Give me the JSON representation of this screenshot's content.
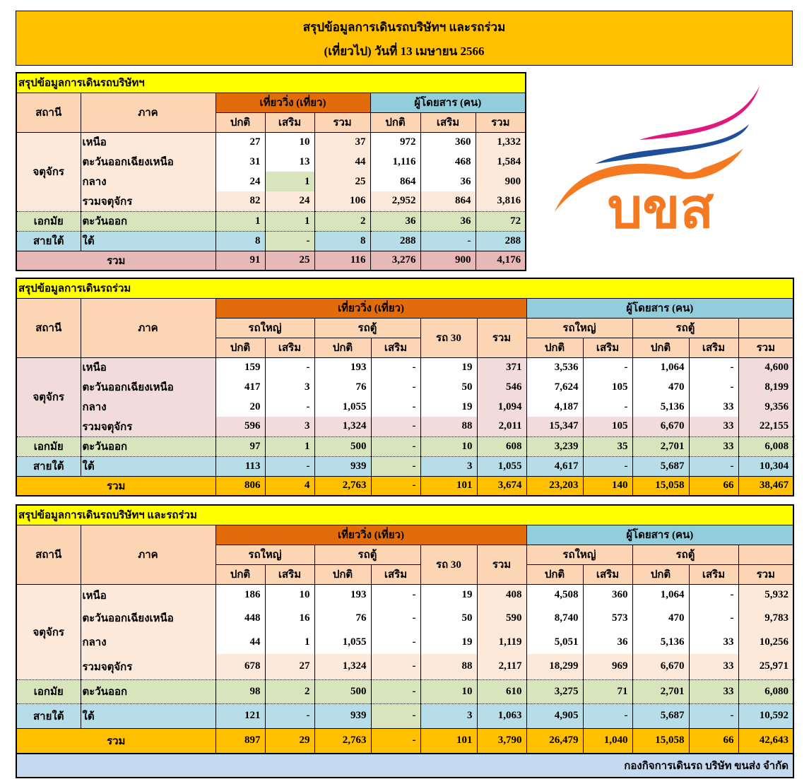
{
  "title": {
    "line1": "สรุปข้อมูลการเดินรถบริษัทฯ และรถร่วม",
    "line2": "(เที่ยวไป) วันที่ 13 เมษายน  2566"
  },
  "logo": {
    "text": "บขส",
    "colors": {
      "pink": "#e0197d",
      "blue": "#1f4e9c",
      "orange": "#f47920"
    }
  },
  "headers": {
    "station": "สถานี",
    "region": "ภาค",
    "trips": "เที่ยววิ่ง (เที่ยว)",
    "passengers": "ผู้โดยสาร (คน)",
    "normal": "ปกติ",
    "extra": "เสริม",
    "total": "รวม",
    "big_bus": "รถใหญ่",
    "van": "รถตู้",
    "bus30": "รถ 30"
  },
  "tables": [
    {
      "title": "สรุปข้อมูลการเดินรถบริษัทฯ",
      "rows": [
        {
          "station": "จตุจักร",
          "region": "เหนือ",
          "values": [
            "27",
            "10",
            "37",
            "972",
            "360",
            "1,332"
          ]
        },
        {
          "station": "จตุจักร",
          "region": "ตะวันออกเฉียงเหนือ",
          "values": [
            "31",
            "13",
            "44",
            "1,116",
            "468",
            "1,584"
          ]
        },
        {
          "station": "จตุจักร",
          "region": "กลาง",
          "values": [
            "24",
            "1",
            "25",
            "864",
            "36",
            "900"
          ]
        },
        {
          "station": "จตุจักร",
          "region": "รวมจตุจักร",
          "values": [
            "82",
            "24",
            "106",
            "2,952",
            "864",
            "3,816"
          ]
        },
        {
          "station": "เอกมัย",
          "region": "ตะวันออก",
          "values": [
            "1",
            "1",
            "2",
            "36",
            "36",
            "72"
          ]
        },
        {
          "station": "สายใต้",
          "region": "ใต้",
          "values": [
            "8",
            "-",
            "8",
            "288",
            "-",
            "288"
          ]
        }
      ],
      "total": {
        "label": "รวม",
        "values": [
          "91",
          "25",
          "116",
          "3,276",
          "900",
          "4,176"
        ]
      }
    },
    {
      "title": "สรุปข้อมูลการเดินรถร่วม",
      "rows": [
        {
          "station": "จตุจักร",
          "region": "เหนือ",
          "values": [
            "159",
            "-",
            "193",
            "-",
            "19",
            "371",
            "3,536",
            "-",
            "1,064",
            "-",
            "4,600"
          ]
        },
        {
          "station": "จตุจักร",
          "region": "ตะวันออกเฉียงเหนือ",
          "values": [
            "417",
            "3",
            "76",
            "-",
            "50",
            "546",
            "7,624",
            "105",
            "470",
            "-",
            "8,199"
          ]
        },
        {
          "station": "จตุจักร",
          "region": "กลาง",
          "values": [
            "20",
            "-",
            "1,055",
            "-",
            "19",
            "1,094",
            "4,187",
            "-",
            "5,136",
            "33",
            "9,356"
          ]
        },
        {
          "station": "จตุจักร",
          "region": "รวมจตุจักร",
          "values": [
            "596",
            "3",
            "1,324",
            "-",
            "88",
            "2,011",
            "15,347",
            "105",
            "6,670",
            "33",
            "22,155"
          ]
        },
        {
          "station": "เอกมัย",
          "region": "ตะวันออก",
          "values": [
            "97",
            "1",
            "500",
            "-",
            "10",
            "608",
            "3,239",
            "35",
            "2,701",
            "33",
            "6,008"
          ]
        },
        {
          "station": "สายใต้",
          "region": "ใต้",
          "values": [
            "113",
            "-",
            "939",
            "-",
            "3",
            "1,055",
            "4,617",
            "-",
            "5,687",
            "-",
            "10,304"
          ]
        }
      ],
      "total": {
        "label": "รวม",
        "values": [
          "806",
          "4",
          "2,763",
          "-",
          "101",
          "3,674",
          "23,203",
          "140",
          "15,058",
          "66",
          "38,467"
        ]
      }
    },
    {
      "title": "สรุปข้อมูลการเดินรถบริษัทฯ และรถร่วม",
      "rows": [
        {
          "station": "จตุจักร",
          "region": "เหนือ",
          "values": [
            "186",
            "10",
            "193",
            "-",
            "19",
            "408",
            "4,508",
            "360",
            "1,064",
            "-",
            "5,932"
          ]
        },
        {
          "station": "จตุจักร",
          "region": "ตะวันออกเฉียงเหนือ",
          "values": [
            "448",
            "16",
            "76",
            "-",
            "50",
            "590",
            "8,740",
            "573",
            "470",
            "-",
            "9,783"
          ]
        },
        {
          "station": "จตุจักร",
          "region": "กลาง",
          "values": [
            "44",
            "1",
            "1,055",
            "-",
            "19",
            "1,119",
            "5,051",
            "36",
            "5,136",
            "33",
            "10,256"
          ]
        },
        {
          "station": "จตุจักร",
          "region": "รวมจตุจักร",
          "values": [
            "678",
            "27",
            "1,324",
            "-",
            "88",
            "2,117",
            "18,299",
            "969",
            "6,670",
            "33",
            "25,971"
          ]
        },
        {
          "station": "เอกมัย",
          "region": "ตะวันออก",
          "values": [
            "98",
            "2",
            "500",
            "-",
            "10",
            "610",
            "3,275",
            "71",
            "2,701",
            "33",
            "6,080"
          ]
        },
        {
          "station": "สายใต้",
          "region": "ใต้",
          "values": [
            "121",
            "-",
            "939",
            "-",
            "3",
            "1,063",
            "4,905",
            "-",
            "5,687",
            "-",
            "10,592"
          ]
        }
      ],
      "total": {
        "label": "รวม",
        "values": [
          "897",
          "29",
          "2,763",
          "-",
          "101",
          "3,790",
          "26,479",
          "1,040",
          "15,058",
          "66",
          "42,643"
        ]
      },
      "footer": "กองกิจการเดินรถ บริษัท ขนส่ง จำกัด"
    }
  ],
  "colors": {
    "title_bg": "#ffc000",
    "section_title_bg": "#ffff00",
    "header_bg": "#fcd5b4",
    "trips_header_bg": "#e26b0a",
    "passengers_header_bg": "#92cddc",
    "ekkamai_bg": "#d8e4bc",
    "southern_bg": "#b7dee8",
    "total_company_bg": "#e6b8b7",
    "total_bg": "#ffc000",
    "footer_bg": "#c5d9f1"
  }
}
